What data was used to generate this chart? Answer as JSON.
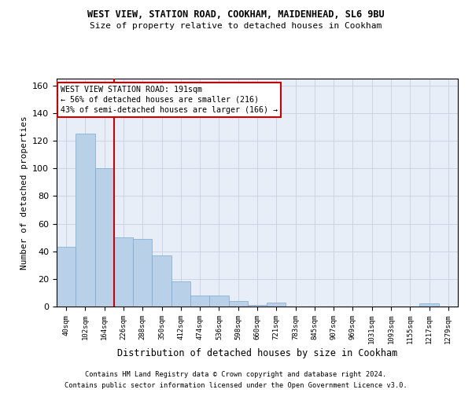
{
  "title1": "WEST VIEW, STATION ROAD, COOKHAM, MAIDENHEAD, SL6 9BU",
  "title2": "Size of property relative to detached houses in Cookham",
  "xlabel": "Distribution of detached houses by size in Cookham",
  "ylabel": "Number of detached properties",
  "categories": [
    "40sqm",
    "102sqm",
    "164sqm",
    "226sqm",
    "288sqm",
    "350sqm",
    "412sqm",
    "474sqm",
    "536sqm",
    "598sqm",
    "660sqm",
    "721sqm",
    "783sqm",
    "845sqm",
    "907sqm",
    "969sqm",
    "1031sqm",
    "1093sqm",
    "1155sqm",
    "1217sqm",
    "1279sqm"
  ],
  "values": [
    43,
    125,
    100,
    50,
    49,
    37,
    18,
    8,
    8,
    4,
    1,
    3,
    0,
    0,
    0,
    0,
    0,
    0,
    0,
    2,
    0
  ],
  "bar_color": "#b8d0e8",
  "bar_edge_color": "#7aaad0",
  "grid_color": "#c8d0e0",
  "bg_color": "#e8eef8",
  "vline_x": 2.5,
  "vline_color": "#cc0000",
  "annotation_text": "WEST VIEW STATION ROAD: 191sqm\n← 56% of detached houses are smaller (216)\n43% of semi-detached houses are larger (166) →",
  "annotation_box_color": "#ffffff",
  "annotation_box_edge": "#cc0000",
  "ylim": [
    0,
    165
  ],
  "yticks": [
    0,
    20,
    40,
    60,
    80,
    100,
    120,
    140,
    160
  ],
  "footer1": "Contains HM Land Registry data © Crown copyright and database right 2024.",
  "footer2": "Contains public sector information licensed under the Open Government Licence v3.0."
}
